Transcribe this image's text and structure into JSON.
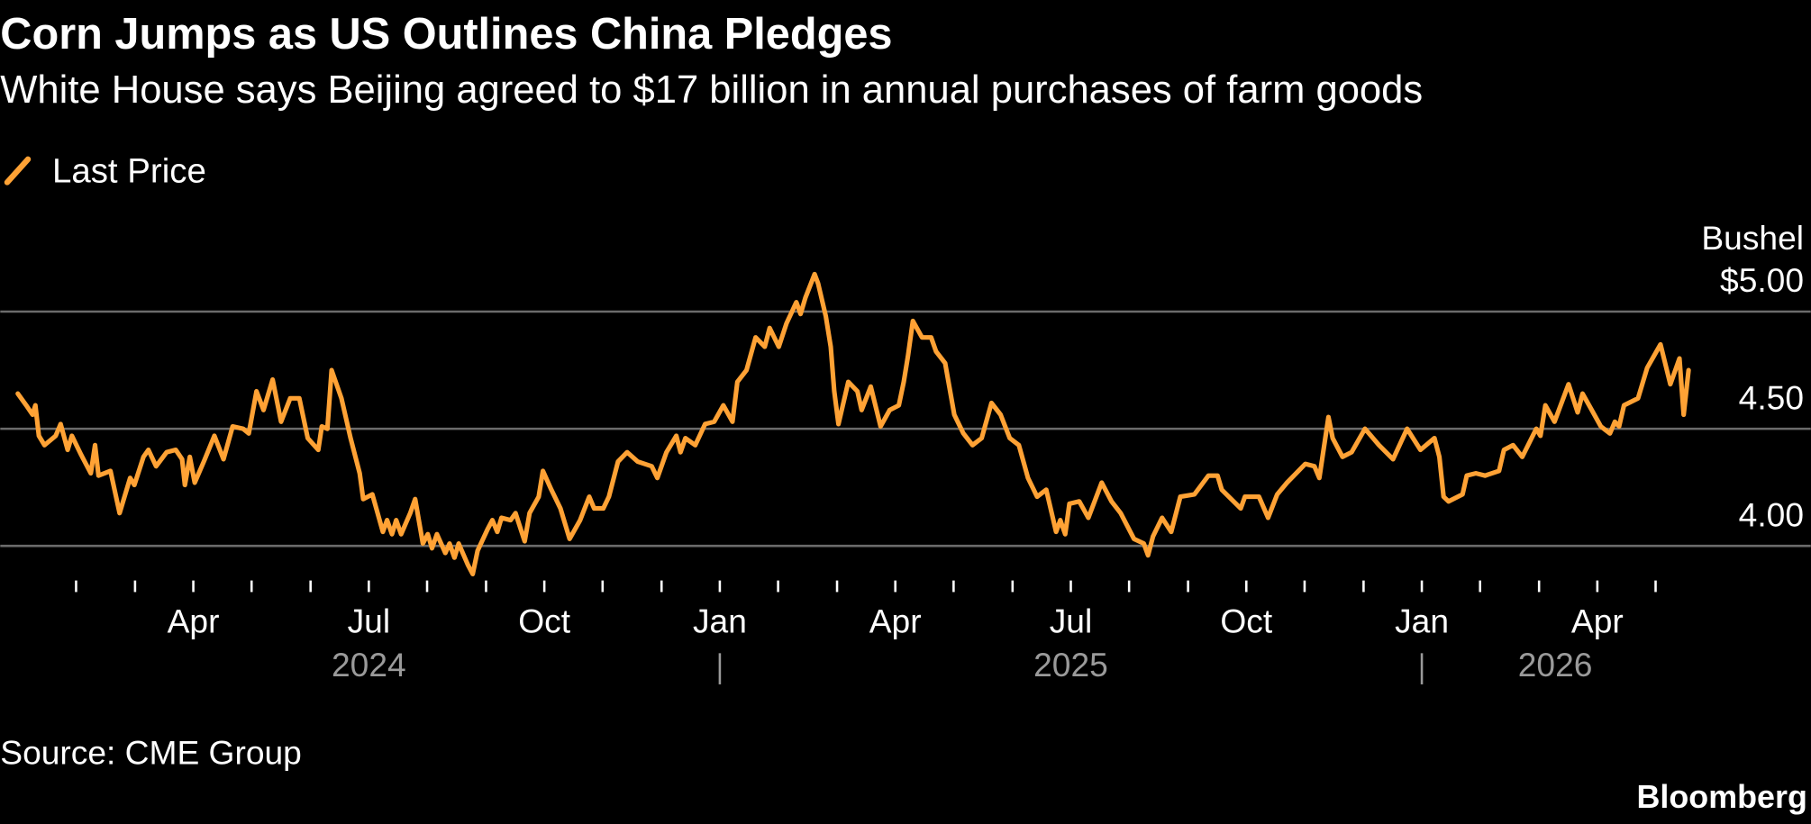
{
  "chart_data": {
    "type": "line",
    "title": "Corn Jumps as US Outlines China Pledges",
    "subtitle": "White House says Beijing agreed to $17 billion in annual purchases of farm goods",
    "y_axis_label": "Bushel",
    "source": "Source: CME Group",
    "credit": "Bloomberg",
    "grid": true,
    "xlim": [
      2023.975,
      2026.554
    ],
    "ylim": [
      3.85,
      5.2
    ],
    "yticks": [
      {
        "value": 4.0,
        "label": "4.00"
      },
      {
        "value": 4.5,
        "label": "4.50"
      },
      {
        "value": 5.0,
        "label": "$5.00"
      }
    ],
    "xticks": [
      {
        "value": 2024.25,
        "label": "Apr"
      },
      {
        "value": 2024.5,
        "label": "Jul"
      },
      {
        "value": 2024.75,
        "label": "Oct"
      },
      {
        "value": 2025.0,
        "label": "Jan"
      },
      {
        "value": 2025.25,
        "label": "Apr"
      },
      {
        "value": 2025.5,
        "label": "Jul"
      },
      {
        "value": 2025.75,
        "label": "Oct"
      },
      {
        "value": 2026.0,
        "label": "Jan"
      },
      {
        "value": 2026.25,
        "label": "Apr"
      }
    ],
    "xminorticks": [
      2024.083,
      2024.167,
      2024.25,
      2024.333,
      2024.417,
      2024.5,
      2024.583,
      2024.667,
      2024.75,
      2024.833,
      2024.917,
      2025.0,
      2025.083,
      2025.167,
      2025.25,
      2025.333,
      2025.417,
      2025.5,
      2025.583,
      2025.667,
      2025.75,
      2025.833,
      2025.917,
      2026.0,
      2026.083,
      2026.167,
      2026.25,
      2026.333
    ],
    "years": [
      {
        "value": 2024.5,
        "label": "2024"
      },
      {
        "value": 2025.5,
        "label": "2025"
      },
      {
        "value": 2026.19,
        "label": "2026"
      }
    ],
    "x": [
      2024.0,
      2024.012,
      2024.021,
      2024.025,
      2024.03,
      2024.038,
      2024.054,
      2024.061,
      2024.071,
      2024.077,
      2024.09,
      2024.104,
      2024.11,
      2024.115,
      2024.132,
      2024.145,
      2024.16,
      2024.166,
      2024.179,
      2024.186,
      2024.197,
      2024.212,
      2024.225,
      2024.234,
      2024.238,
      2024.245,
      2024.252,
      2024.265,
      2024.28,
      2024.293,
      2024.306,
      2024.321,
      2024.329,
      2024.34,
      2024.35,
      2024.363,
      2024.375,
      2024.388,
      2024.401,
      2024.413,
      2024.428,
      2024.433,
      2024.441,
      2024.447,
      2024.461,
      2024.474,
      2024.487,
      2024.492,
      2024.505,
      2024.52,
      2024.526,
      2024.533,
      2024.539,
      2024.546,
      2024.559,
      2024.566,
      2024.577,
      2024.584,
      2024.59,
      2024.597,
      2024.609,
      2024.615,
      2024.622,
      2024.628,
      2024.641,
      2024.648,
      2024.655,
      2024.669,
      2024.676,
      2024.683,
      2024.689,
      2024.702,
      2024.709,
      2024.722,
      2024.729,
      2024.742,
      2024.748,
      2024.76,
      2024.773,
      2024.786,
      2024.801,
      2024.814,
      2024.821,
      2024.834,
      2024.842,
      2024.855,
      2024.868,
      2024.883,
      2024.903,
      2024.911,
      2024.924,
      2024.938,
      2024.944,
      2024.951,
      2024.965,
      2024.979,
      2024.992,
      2025.005,
      2025.018,
      2025.025,
      2025.038,
      2025.051,
      2025.064,
      2025.071,
      2025.084,
      2025.095,
      2025.109,
      2025.115,
      2025.122,
      2025.135,
      2025.14,
      2025.151,
      2025.158,
      2025.163,
      2025.169,
      2025.183,
      2025.196,
      2025.202,
      2025.215,
      2025.229,
      2025.242,
      2025.255,
      2025.262,
      2025.268,
      2025.275,
      2025.288,
      2025.301,
      2025.308,
      2025.321,
      2025.334,
      2025.347,
      2025.36,
      2025.373,
      2025.387,
      2025.4,
      2025.413,
      2025.426,
      2025.439,
      2025.452,
      2025.465,
      2025.479,
      2025.485,
      2025.492,
      2025.498,
      2025.512,
      2025.525,
      2025.544,
      2025.558,
      2025.571,
      2025.59,
      2025.604,
      2025.61,
      2025.617,
      2025.63,
      2025.643,
      2025.656,
      2025.676,
      2025.696,
      2025.709,
      2025.715,
      2025.742,
      2025.748,
      2025.768,
      2025.781,
      2025.794,
      2025.808,
      2025.821,
      2025.834,
      2025.847,
      2025.854,
      2025.867,
      2025.873,
      2025.887,
      2025.9,
      2025.919,
      2025.939,
      2025.959,
      2025.979,
      2025.998,
      2026.018,
      2026.025,
      2026.031,
      2026.038,
      2026.058,
      2026.064,
      2026.077,
      2026.09,
      2026.11,
      2026.117,
      2026.13,
      2026.143,
      2026.163,
      2026.169,
      2026.176,
      2026.189,
      2026.209,
      2026.222,
      2026.229,
      2026.242,
      2026.255,
      2026.268,
      2026.275,
      2026.281,
      2026.288,
      2026.308,
      2026.321,
      2026.34,
      2026.354,
      2026.367,
      2026.373,
      2026.38
    ],
    "series": [
      {
        "name": "Last Price",
        "color": "#ffa235",
        "values": [
          4.65,
          4.6,
          4.56,
          4.6,
          4.47,
          4.43,
          4.47,
          4.52,
          4.41,
          4.47,
          4.39,
          4.31,
          4.43,
          4.3,
          4.32,
          4.14,
          4.29,
          4.26,
          4.38,
          4.41,
          4.34,
          4.4,
          4.41,
          4.37,
          4.26,
          4.38,
          4.27,
          4.36,
          4.47,
          4.37,
          4.51,
          4.5,
          4.48,
          4.66,
          4.58,
          4.71,
          4.53,
          4.63,
          4.63,
          4.46,
          4.41,
          4.51,
          4.5,
          4.75,
          4.63,
          4.46,
          4.31,
          4.2,
          4.22,
          4.06,
          4.11,
          4.05,
          4.11,
          4.05,
          4.14,
          4.2,
          4.01,
          4.05,
          3.99,
          4.05,
          3.97,
          4.01,
          3.95,
          4.01,
          3.92,
          3.88,
          3.98,
          4.07,
          4.11,
          4.06,
          4.12,
          4.11,
          4.14,
          4.02,
          4.14,
          4.21,
          4.32,
          4.24,
          4.16,
          4.03,
          4.11,
          4.21,
          4.16,
          4.16,
          4.21,
          4.36,
          4.4,
          4.36,
          4.34,
          4.29,
          4.4,
          4.47,
          4.4,
          4.46,
          4.43,
          4.52,
          4.53,
          4.6,
          4.53,
          4.7,
          4.75,
          4.89,
          4.85,
          4.93,
          4.85,
          4.95,
          5.04,
          4.99,
          5.06,
          5.16,
          5.12,
          4.98,
          4.85,
          4.66,
          4.52,
          4.7,
          4.66,
          4.58,
          4.68,
          4.51,
          4.58,
          4.6,
          4.7,
          4.81,
          4.96,
          4.89,
          4.89,
          4.83,
          4.78,
          4.56,
          4.48,
          4.43,
          4.46,
          4.61,
          4.56,
          4.46,
          4.43,
          4.29,
          4.21,
          4.24,
          4.06,
          4.11,
          4.05,
          4.18,
          4.19,
          4.12,
          4.27,
          4.19,
          4.14,
          4.03,
          4.01,
          3.96,
          4.04,
          4.12,
          4.06,
          4.21,
          4.22,
          4.3,
          4.3,
          4.24,
          4.16,
          4.21,
          4.21,
          4.12,
          4.22,
          4.27,
          4.31,
          4.35,
          4.34,
          4.29,
          4.55,
          4.46,
          4.38,
          4.4,
          4.5,
          4.43,
          4.37,
          4.5,
          4.41,
          4.46,
          4.38,
          4.21,
          4.19,
          4.22,
          4.3,
          4.31,
          4.3,
          4.32,
          4.41,
          4.43,
          4.38,
          4.5,
          4.47,
          4.6,
          4.53,
          4.69,
          4.57,
          4.65,
          4.58,
          4.51,
          4.48,
          4.53,
          4.51,
          4.6,
          4.63,
          4.76,
          4.86,
          4.69,
          4.8,
          4.56,
          4.75
        ]
      }
    ]
  }
}
